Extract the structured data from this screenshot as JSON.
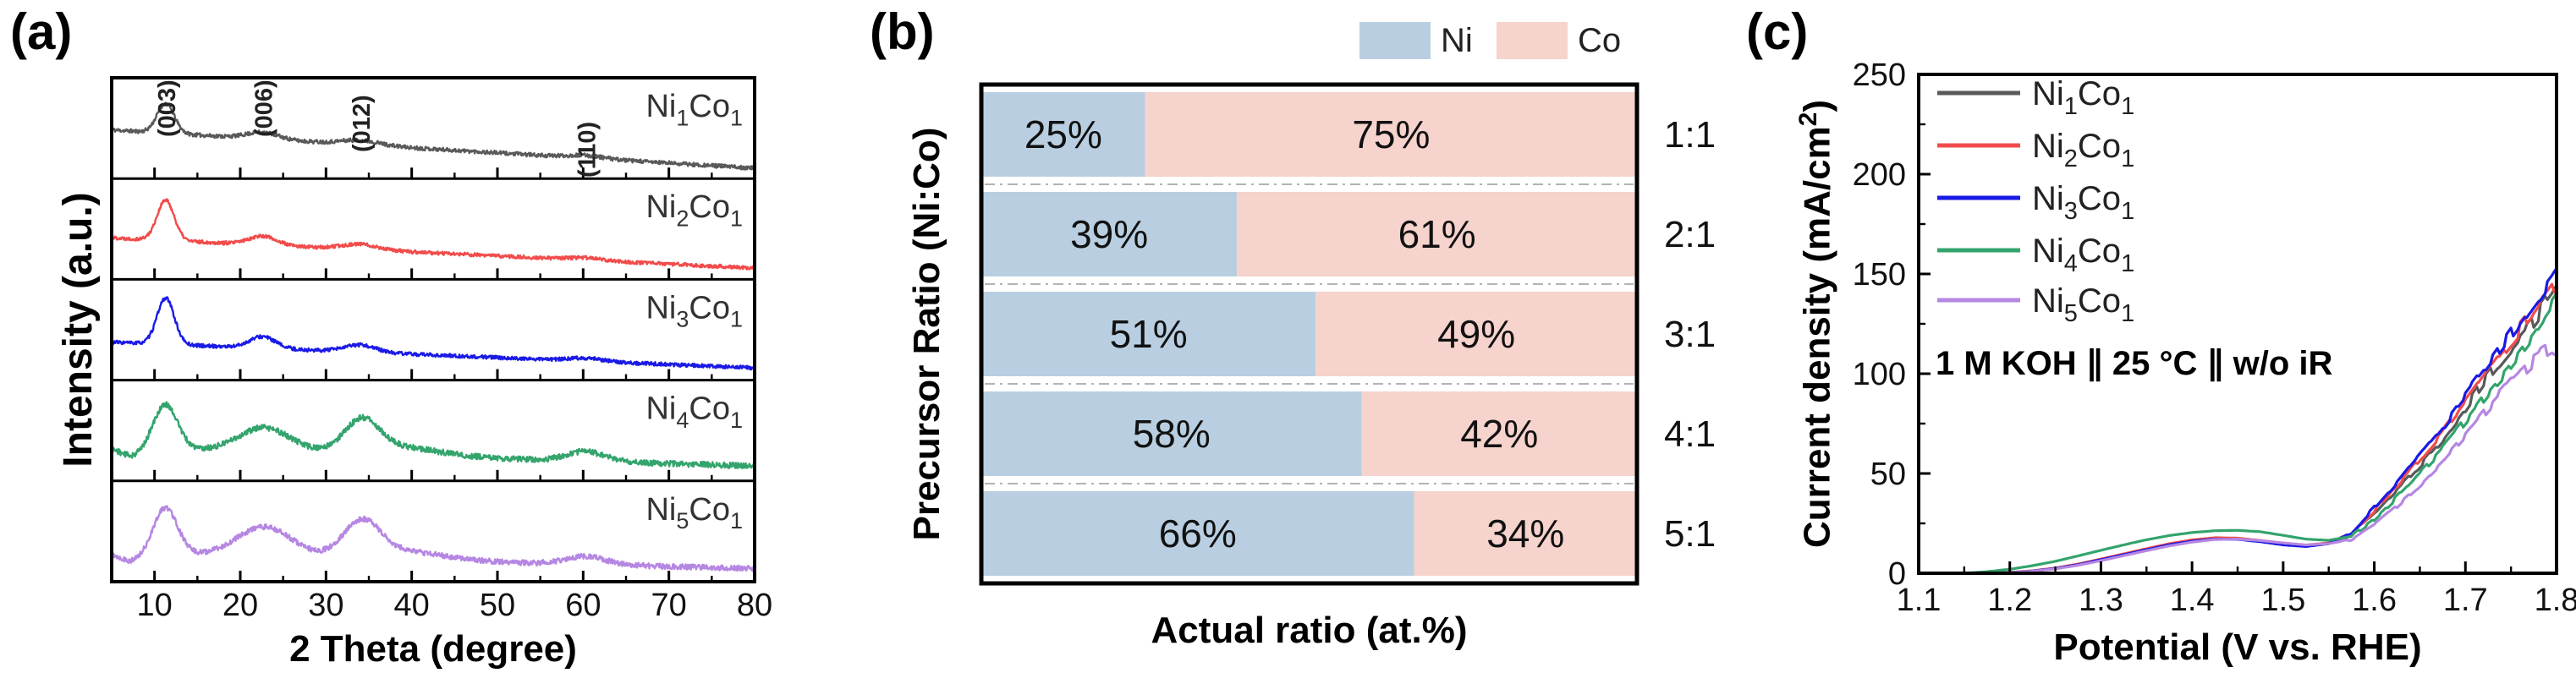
{
  "figure": {
    "panel_labels": {
      "a": "(a)",
      "b": "(b)",
      "c": "(c)"
    }
  },
  "chart_data": [
    {
      "panel": "a",
      "type": "line",
      "kind": "xrd-stacked-patterns",
      "xlabel": "2 Theta (degree)",
      "ylabel": "Intensity (a.u.)",
      "x_range": [
        5,
        80
      ],
      "x_ticks": [
        10,
        20,
        30,
        40,
        50,
        60,
        70,
        80
      ],
      "x_minor_ticks": [
        15,
        25,
        35,
        45,
        55,
        65,
        75
      ],
      "peak_annotations": [
        {
          "label": "(003)",
          "x": 11.3
        },
        {
          "label": "(006)",
          "x": 22.6
        },
        {
          "label": "(012)",
          "x": 34.0
        },
        {
          "label": "(110)",
          "x": 60.3
        }
      ],
      "series": [
        {
          "name": "Ni_1Co_1",
          "color": "#595959",
          "seed": 11,
          "noise": 0.022,
          "baseline": [
            0.5,
            0.07
          ],
          "peaks": [
            {
              "x": 11.3,
              "h": 0.33,
              "w": 1.0
            },
            {
              "x": 22.6,
              "h": 0.075,
              "w": 1.8
            },
            {
              "x": 34.0,
              "h": 0.05,
              "w": 2.2
            },
            {
              "x": 60.3,
              "h": 0.03,
              "w": 2.0
            }
          ]
        },
        {
          "name": "Ni_2Co_1",
          "color": "#f14b4b",
          "seed": 22,
          "noise": 0.02,
          "baseline": [
            0.42,
            0.08
          ],
          "peaks": [
            {
              "x": 11.3,
              "h": 0.45,
              "w": 1.0
            },
            {
              "x": 22.6,
              "h": 0.1,
              "w": 1.6
            },
            {
              "x": 34.0,
              "h": 0.06,
              "w": 2.0
            },
            {
              "x": 60.3,
              "h": 0.025,
              "w": 2.0
            }
          ]
        },
        {
          "name": "Ni_3Co_1",
          "color": "#1a1ae6",
          "seed": 33,
          "noise": 0.02,
          "baseline": [
            0.38,
            0.09
          ],
          "peaks": [
            {
              "x": 11.3,
              "h": 0.52,
              "w": 1.0
            },
            {
              "x": 22.6,
              "h": 0.13,
              "w": 1.5
            },
            {
              "x": 34.0,
              "h": 0.08,
              "w": 1.8
            },
            {
              "x": 60.3,
              "h": 0.035,
              "w": 2.0
            }
          ]
        },
        {
          "name": "Ni_4Co_1",
          "color": "#33a46c",
          "seed": 44,
          "noise": 0.032,
          "baseline": [
            0.33,
            0.12
          ],
          "peaks": [
            {
              "x": 7.3,
              "h": -0.09,
              "w": 1.3
            },
            {
              "x": 11.3,
              "h": 0.5,
              "w": 1.4
            },
            {
              "x": 22.8,
              "h": 0.27,
              "w": 3.0
            },
            {
              "x": 34.2,
              "h": 0.34,
              "w": 2.0
            },
            {
              "x": 38.0,
              "h": 0.1,
              "w": 5.0
            },
            {
              "x": 60.3,
              "h": 0.11,
              "w": 2.2
            }
          ]
        },
        {
          "name": "Ni_5Co_1",
          "color": "#b687e2",
          "seed": 55,
          "noise": 0.03,
          "baseline": [
            0.28,
            0.1
          ],
          "peaks": [
            {
              "x": 7.3,
              "h": -0.09,
              "w": 1.3
            },
            {
              "x": 11.3,
              "h": 0.52,
              "w": 1.4
            },
            {
              "x": 22.8,
              "h": 0.33,
              "w": 3.2
            },
            {
              "x": 34.2,
              "h": 0.38,
              "w": 2.1
            },
            {
              "x": 38.5,
              "h": 0.1,
              "w": 5.0
            },
            {
              "x": 60.3,
              "h": 0.09,
              "w": 2.3
            }
          ]
        }
      ]
    },
    {
      "panel": "b",
      "type": "bar",
      "orientation": "horizontal-stacked",
      "xlabel": "Actual ratio (at.%)",
      "ylabel": "Precursor Ratio (Ni:Co)",
      "categories": [
        "1:1",
        "2:1",
        "3:1",
        "4:1",
        "5:1"
      ],
      "value_suffix": "%",
      "legend": [
        {
          "name": "Ni",
          "color": "#b9cfe1"
        },
        {
          "name": "Co",
          "color": "#f6d3cc"
        }
      ],
      "series": [
        {
          "name": "Ni",
          "color": "#b9cfe1",
          "values": [
            25,
            39,
            51,
            58,
            66
          ]
        },
        {
          "name": "Co",
          "color": "#f6d3cc",
          "values": [
            75,
            61,
            49,
            42,
            34
          ]
        }
      ]
    },
    {
      "panel": "c",
      "type": "line",
      "kind": "lsv-polarization",
      "xlabel": "Potential (V vs. RHE)",
      "ylabel": "Current density (mA/cm^2)",
      "annotation": "1 M KOH ∥ 25 °C ∥ w/o iR",
      "x_range": [
        1.1,
        1.8
      ],
      "x_ticks": [
        "1.1",
        "1.2",
        "1.3",
        "1.4",
        "1.5",
        "1.6",
        "1.7",
        "1.8"
      ],
      "y_range": [
        0,
        250
      ],
      "y_ticks": [
        0,
        50,
        100,
        150,
        200,
        250
      ],
      "legend_position": "upper-left-inside",
      "x": [
        1.15,
        1.175,
        1.2,
        1.225,
        1.25,
        1.275,
        1.3,
        1.325,
        1.35,
        1.375,
        1.4,
        1.425,
        1.45,
        1.475,
        1.5,
        1.525,
        1.55,
        1.575,
        1.6,
        1.625,
        1.65,
        1.675,
        1.7,
        1.725,
        1.75,
        1.775,
        1.8
      ],
      "series": [
        {
          "name": "Ni_1Co_1",
          "color": "#595959",
          "seed": 7,
          "y": [
            0,
            0,
            0.4,
            1.2,
            2.5,
            4.5,
            7,
            9.5,
            12,
            14.5,
            16.3,
            17.3,
            17.3,
            16.2,
            14.8,
            14,
            15,
            19.5,
            30,
            42,
            54,
            67,
            82,
            99,
            113,
            127,
            143
          ]
        },
        {
          "name": "Ni_2Co_1",
          "color": "#f14b4b",
          "seed": 17,
          "y": [
            0,
            0,
            0.4,
            1.2,
            2.6,
            4.6,
            7.1,
            9.7,
            12.3,
            14.8,
            16.7,
            17.8,
            17.6,
            16.4,
            14.9,
            14.1,
            15.2,
            20,
            31.5,
            44,
            57,
            71,
            86,
            102,
            117,
            131,
            147
          ]
        },
        {
          "name": "Ni_3Co_1",
          "color": "#1a1ae6",
          "seed": 27,
          "y": [
            0,
            0,
            0.3,
            1.1,
            2.4,
            4.3,
            6.8,
            9.3,
            11.8,
            14.3,
            16.1,
            17.1,
            17,
            15.8,
            14.2,
            13.4,
            14.8,
            20.5,
            33,
            46,
            60,
            74,
            89,
            104,
            120,
            136,
            151
          ]
        },
        {
          "name": "Ni_4Co_1",
          "color": "#33a46c",
          "seed": 37,
          "y": [
            0,
            0.8,
            2,
            3.8,
            6,
            8.7,
            11.5,
            14.2,
            16.8,
            18.9,
            20.4,
            21.3,
            21.5,
            20.8,
            19,
            17.1,
            16.5,
            18.5,
            27,
            38,
            50,
            62,
            76,
            91,
            104,
            119,
            136
          ]
        },
        {
          "name": "Ni_5Co_1",
          "color": "#b687e2",
          "seed": 47,
          "y": [
            0,
            0,
            0.3,
            1,
            2.2,
            4,
            6.3,
            8.8,
            11.3,
            13.7,
            15.6,
            16.9,
            17.1,
            16.4,
            15.2,
            14.2,
            14.8,
            17,
            24.5,
            34,
            44.5,
            56,
            69,
            83,
            96,
            107,
            114
          ]
        }
      ]
    }
  ]
}
